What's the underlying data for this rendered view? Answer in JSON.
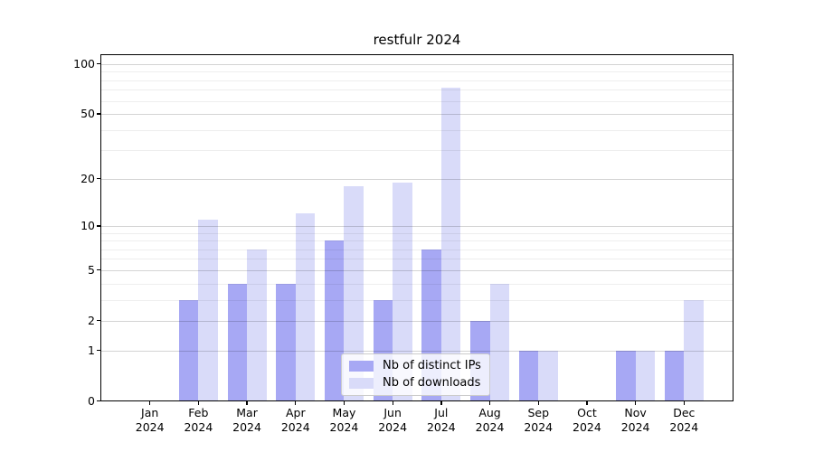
{
  "chart_data": {
    "type": "bar",
    "title": "restfulr 2024",
    "x_tick_months": [
      "Jan",
      "Feb",
      "Mar",
      "Apr",
      "May",
      "Jun",
      "Jul",
      "Aug",
      "Sep",
      "Oct",
      "Nov",
      "Dec"
    ],
    "x_tick_year": "2024",
    "categories": [
      "Jan 2024",
      "Feb 2024",
      "Mar 2024",
      "Apr 2024",
      "May 2024",
      "Jun 2024",
      "Jul 2024",
      "Aug 2024",
      "Sep 2024",
      "Oct 2024",
      "Nov 2024",
      "Dec 2024"
    ],
    "series": [
      {
        "name": "Nb of distinct IPs",
        "color": "#a7a8f4",
        "values": [
          0,
          3,
          4,
          4,
          8,
          3,
          7,
          2,
          1,
          0,
          1,
          1
        ]
      },
      {
        "name": "Nb of downloads",
        "color": "#d9dbf9",
        "values": [
          0,
          11,
          7,
          12,
          18,
          19,
          72,
          4,
          1,
          0,
          1,
          3
        ]
      }
    ],
    "yscale": "log1p",
    "ylim": [
      0,
      113
    ],
    "yticks": [
      0,
      1,
      2,
      5,
      10,
      20,
      50,
      100
    ],
    "minor_gridlines": [
      3,
      4,
      6,
      7,
      8,
      9,
      30,
      40,
      60,
      70,
      80,
      90
    ],
    "grid": "horizontal",
    "legend_position": "lower-center",
    "colors": {
      "axis": "#000000",
      "grid_major": "#d4d4d4",
      "grid_minor": "#ededed",
      "background": "#ffffff"
    }
  }
}
